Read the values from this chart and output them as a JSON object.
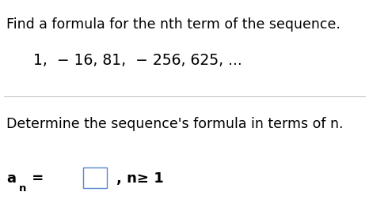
{
  "title_line1": "Find a formula for the nth term of the sequence.",
  "sequence_text": "1,  − 16, 81,  − 256, 625, ...",
  "question_text": "Determine the sequence's formula in terms of n.",
  "suffix": ", n≥ 1",
  "bg_color": "#ffffff",
  "text_color": "#000000",
  "font_size_title": 12.5,
  "font_size_seq": 13.5,
  "font_size_bottom": 12.5,
  "font_size_an": 13.0,
  "font_size_an_sub": 9.5
}
